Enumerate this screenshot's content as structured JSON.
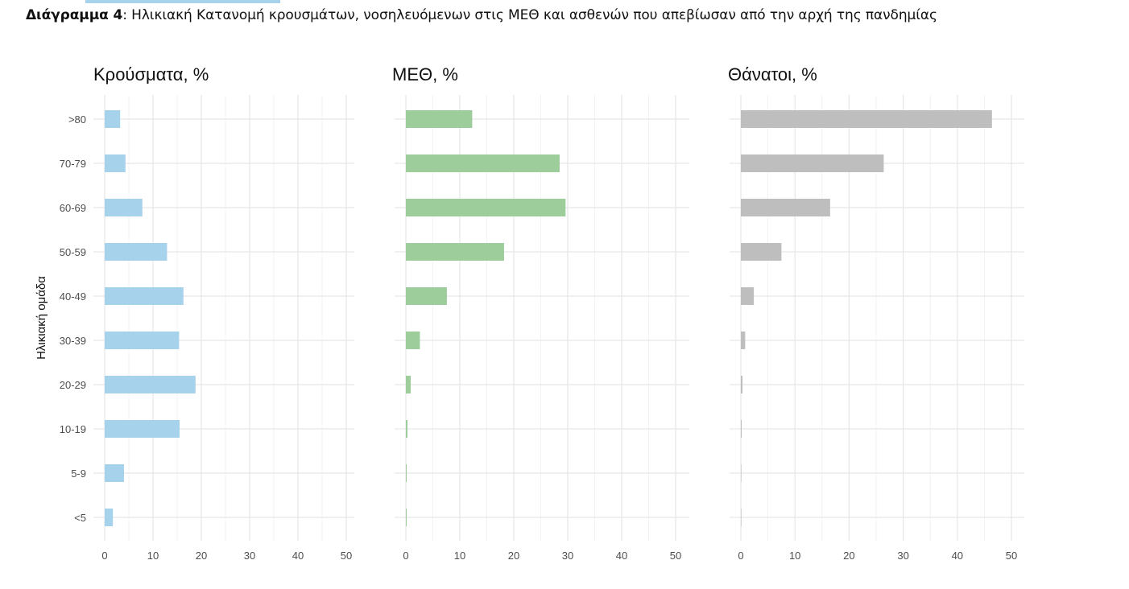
{
  "caption": {
    "label": "Διάγραμμα 4",
    "text": ": Ηλικιακή Κατανομή κρουσμάτων, νοσηλευόμενων στις ΜΕΘ και ασθενών που απεβίωσαν από την αρχή της πανδημίας"
  },
  "chart_data": {
    "type": "bar",
    "orientation": "horizontal",
    "categories": [
      ">80",
      "70-79",
      "60-69",
      "50-59",
      "40-49",
      "30-39",
      "20-29",
      "10-19",
      "5-9",
      "<5"
    ],
    "ylabel": "Ηλικιακή ομάδα",
    "xlim": [
      0,
      52
    ],
    "xticks": [
      0,
      10,
      20,
      30,
      40,
      50
    ],
    "grid": true,
    "panels": [
      {
        "title": "Κρούσματα, %",
        "color": "#a6d2ec",
        "values": [
          3.2,
          4.3,
          7.8,
          12.9,
          16.3,
          15.4,
          18.8,
          15.5,
          4.0,
          1.7
        ]
      },
      {
        "title": "ΜΕΘ, %",
        "color": "#9ccd9b",
        "values": [
          12.3,
          28.5,
          29.6,
          18.2,
          7.6,
          2.6,
          0.9,
          0.3,
          0.15,
          0.1
        ]
      },
      {
        "title": "Θάνατοι, %",
        "color": "#bebebe",
        "values": [
          46.4,
          26.4,
          16.5,
          7.5,
          2.4,
          0.8,
          0.3,
          0.1,
          0,
          0
        ]
      }
    ]
  }
}
